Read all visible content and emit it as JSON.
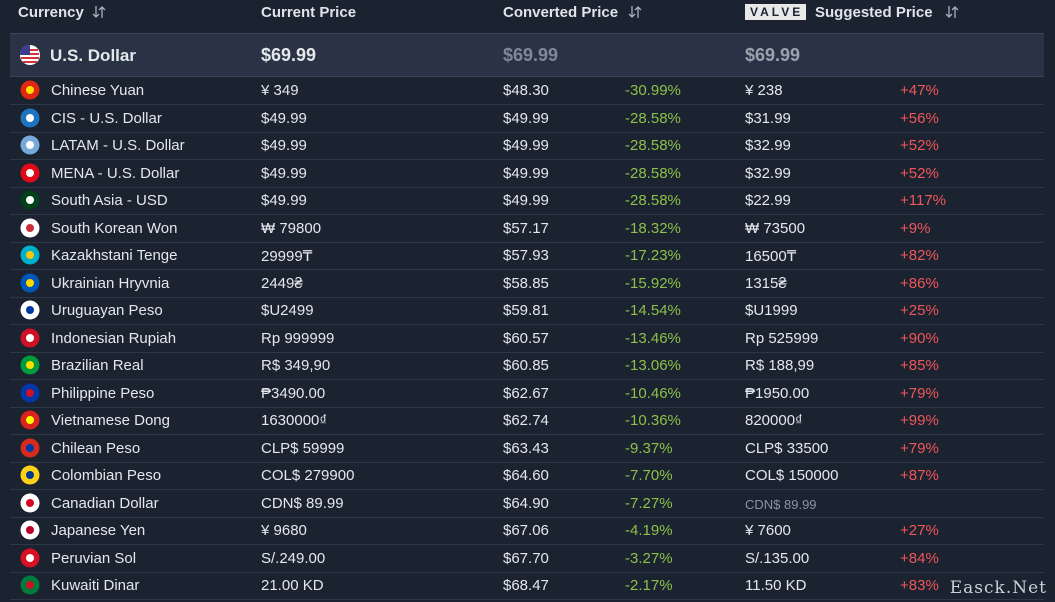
{
  "header": {
    "currency": "Currency",
    "current_price": "Current Price",
    "converted_price": "Converted Price",
    "logo": "VALVE",
    "suggested_price": "Suggested Price"
  },
  "base_row": {
    "name": "U.S. Dollar",
    "current": "$69.99",
    "converted": "$69.99",
    "suggested": "$69.99"
  },
  "rows": [
    {
      "name": "Chinese Yuan",
      "current": "¥ 349",
      "converted": "$48.30",
      "converted_diff": "-30.99%",
      "suggested": "¥ 238",
      "suggested_diff": "+47%"
    },
    {
      "name": "CIS - U.S. Dollar",
      "current": "$49.99",
      "converted": "$49.99",
      "converted_diff": "-28.58%",
      "suggested": "$31.99",
      "suggested_diff": "+56%"
    },
    {
      "name": "LATAM - U.S. Dollar",
      "current": "$49.99",
      "converted": "$49.99",
      "converted_diff": "-28.58%",
      "suggested": "$32.99",
      "suggested_diff": "+52%"
    },
    {
      "name": "MENA - U.S. Dollar",
      "current": "$49.99",
      "converted": "$49.99",
      "converted_diff": "-28.58%",
      "suggested": "$32.99",
      "suggested_diff": "+52%"
    },
    {
      "name": "South Asia - USD",
      "current": "$49.99",
      "converted": "$49.99",
      "converted_diff": "-28.58%",
      "suggested": "$22.99",
      "suggested_diff": "+117%"
    },
    {
      "name": "South Korean Won",
      "current": "₩ 79800",
      "converted": "$57.17",
      "converted_diff": "-18.32%",
      "suggested": "₩ 73500",
      "suggested_diff": "+9%"
    },
    {
      "name": "Kazakhstani Tenge",
      "current": "29999₸",
      "converted": "$57.93",
      "converted_diff": "-17.23%",
      "suggested": "16500₸",
      "suggested_diff": "+82%"
    },
    {
      "name": "Ukrainian Hryvnia",
      "current": "2449₴",
      "converted": "$58.85",
      "converted_diff": "-15.92%",
      "suggested": "1315₴",
      "suggested_diff": "+86%"
    },
    {
      "name": "Uruguayan Peso",
      "current": "$U2499",
      "converted": "$59.81",
      "converted_diff": "-14.54%",
      "suggested": "$U1999",
      "suggested_diff": "+25%"
    },
    {
      "name": "Indonesian Rupiah",
      "current": "Rp 999999",
      "converted": "$60.57",
      "converted_diff": "-13.46%",
      "suggested": "Rp 525999",
      "suggested_diff": "+90%"
    },
    {
      "name": "Brazilian Real",
      "current": "R$ 349,90",
      "converted": "$60.85",
      "converted_diff": "-13.06%",
      "suggested": "R$ 188,99",
      "suggested_diff": "+85%"
    },
    {
      "name": "Philippine Peso",
      "current": "₱3490.00",
      "converted": "$62.67",
      "converted_diff": "-10.46%",
      "suggested": "₱1950.00",
      "suggested_diff": "+79%"
    },
    {
      "name": "Vietnamese Dong",
      "current": "1630000₫",
      "converted": "$62.74",
      "converted_diff": "-10.36%",
      "suggested": "820000₫",
      "suggested_diff": "+99%"
    },
    {
      "name": "Chilean Peso",
      "current": "CLP$ 59999",
      "converted": "$63.43",
      "converted_diff": "-9.37%",
      "suggested": "CLP$ 33500",
      "suggested_diff": "+79%"
    },
    {
      "name": "Colombian Peso",
      "current": "COL$ 279900",
      "converted": "$64.60",
      "converted_diff": "-7.70%",
      "suggested": "COL$ 150000",
      "suggested_diff": "+87%"
    },
    {
      "name": "Canadian Dollar",
      "current": "CDN$ 89.99",
      "converted": "$64.90",
      "converted_diff": "-7.27%",
      "suggested": "CDN$ 89.99"
    },
    {
      "name": "Japanese Yen",
      "current": "¥ 9680",
      "converted": "$67.06",
      "converted_diff": "-4.19%",
      "suggested": "¥ 7600",
      "suggested_diff": "+27%"
    },
    {
      "name": "Peruvian Sol",
      "current": "S/.249.00",
      "converted": "$67.70",
      "converted_diff": "-3.27%",
      "suggested": "S/.135.00",
      "suggested_diff": "+84%"
    },
    {
      "name": "Kuwaiti Dinar",
      "current": "21.00 KD",
      "converted": "$68.47",
      "converted_diff": "-2.17%",
      "suggested": "11.50 KD",
      "suggested_diff": "+83%"
    }
  ],
  "watermark": "Easck.Net"
}
